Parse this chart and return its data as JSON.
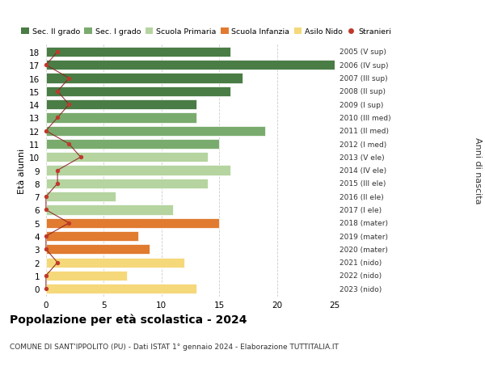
{
  "ages": [
    18,
    17,
    16,
    15,
    14,
    13,
    12,
    11,
    10,
    9,
    8,
    7,
    6,
    5,
    4,
    3,
    2,
    1,
    0
  ],
  "right_labels": [
    "2005 (V sup)",
    "2006 (IV sup)",
    "2007 (III sup)",
    "2008 (II sup)",
    "2009 (I sup)",
    "2010 (III med)",
    "2011 (II med)",
    "2012 (I med)",
    "2013 (V ele)",
    "2014 (IV ele)",
    "2015 (III ele)",
    "2016 (II ele)",
    "2017 (I ele)",
    "2018 (mater)",
    "2019 (mater)",
    "2020 (mater)",
    "2021 (nido)",
    "2022 (nido)",
    "2023 (nido)"
  ],
  "bar_values": [
    16,
    25,
    17,
    16,
    13,
    13,
    19,
    15,
    14,
    16,
    14,
    6,
    11,
    15,
    8,
    9,
    12,
    7,
    13
  ],
  "bar_colors": [
    "#4a7c45",
    "#4a7c45",
    "#4a7c45",
    "#4a7c45",
    "#4a7c45",
    "#7aab6e",
    "#7aab6e",
    "#7aab6e",
    "#b5d4a0",
    "#b5d4a0",
    "#b5d4a0",
    "#b5d4a0",
    "#b5d4a0",
    "#e07b30",
    "#e07b30",
    "#e07b30",
    "#f5d87a",
    "#f5d87a",
    "#f5d87a"
  ],
  "stranieri_x": [
    1,
    0,
    2,
    1,
    2,
    1,
    0,
    2,
    3,
    1,
    1,
    0,
    0,
    2,
    0,
    0,
    1,
    0,
    0
  ],
  "legend_labels": [
    "Sec. II grado",
    "Sec. I grado",
    "Scuola Primaria",
    "Scuola Infanzia",
    "Asilo Nido",
    "Stranieri"
  ],
  "legend_colors": [
    "#4a7c45",
    "#7aab6e",
    "#b5d4a0",
    "#e07b30",
    "#f5d87a",
    "#c0392b"
  ],
  "title": "Popolazione per età scolastica - 2024",
  "subtitle": "COMUNE DI SANT'IPPOLITO (PU) - Dati ISTAT 1° gennaio 2024 - Elaborazione TUTTITALIA.IT",
  "ylabel_left": "Età alunni",
  "ylabel_right": "Anni di nascita",
  "xlim": [
    0,
    25
  ],
  "background_color": "#ffffff",
  "bar_height": 0.75,
  "grid_color": "#cccccc",
  "stranieri_line_color": "#8b2020",
  "stranieri_dot_color": "#c0392b"
}
